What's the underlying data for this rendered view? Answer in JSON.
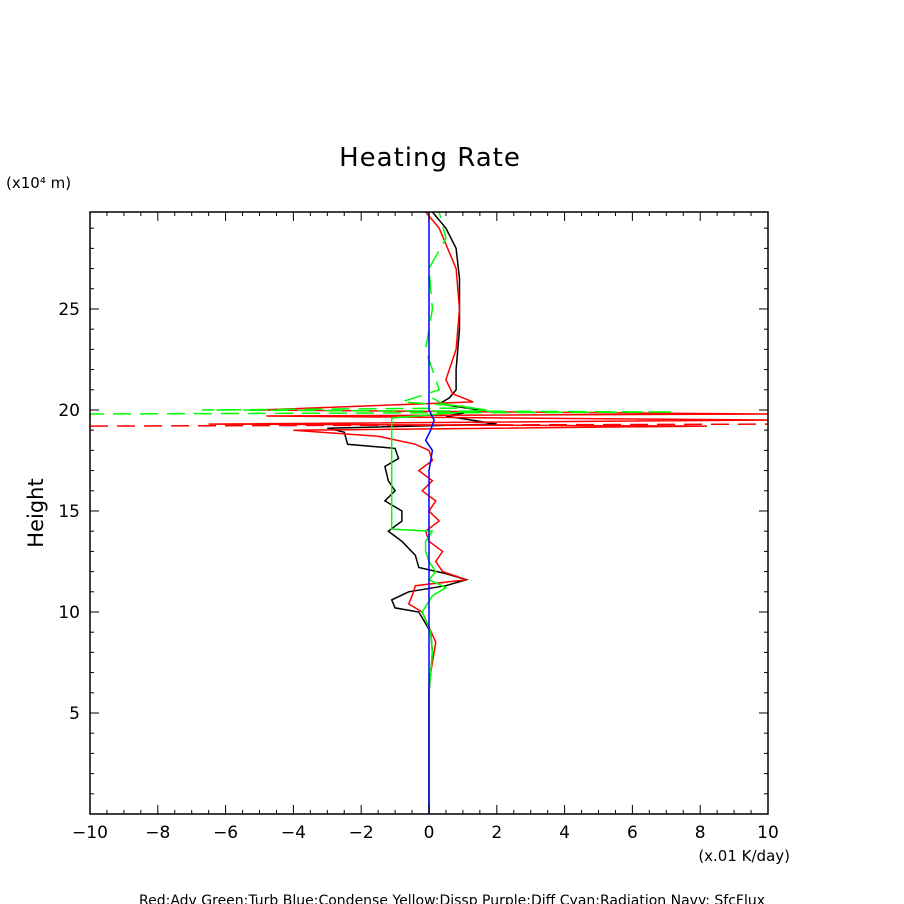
{
  "chart_data": {
    "type": "line",
    "title": "Heating Rate",
    "xlabel": "",
    "ylabel": "Height",
    "x_unit": "(x.01 K/day)",
    "y_unit": "(x10⁴ m)",
    "xlim": [
      -10,
      10
    ],
    "ylim": [
      0,
      29.8
    ],
    "x_ticks": [
      -10,
      -8,
      -6,
      -4,
      -2,
      0,
      2,
      4,
      6,
      8,
      10
    ],
    "y_ticks": [
      5,
      10,
      15,
      20,
      25
    ],
    "legend_text": "Red:Adv  Green:Turb  Blue:Condense  Yellow:Dissp  Purple:Diff  Cyan:Radiation  Navy: SfcFlux",
    "series": [
      {
        "name": "Black",
        "color": "#000000",
        "dash": "",
        "points": [
          [
            0,
            0
          ],
          [
            0,
            6
          ],
          [
            0.05,
            7
          ],
          [
            0.1,
            8
          ],
          [
            0.05,
            9
          ],
          [
            -0.3,
            10
          ],
          [
            -1,
            10.2
          ],
          [
            -1.1,
            10.6
          ],
          [
            -0.6,
            11
          ],
          [
            0.5,
            11.3
          ],
          [
            1.1,
            11.6
          ],
          [
            0.5,
            11.9
          ],
          [
            -0.3,
            12.2
          ],
          [
            -0.4,
            12.8
          ],
          [
            -0.8,
            13.5
          ],
          [
            -1.2,
            14
          ],
          [
            -0.8,
            14.5
          ],
          [
            -0.8,
            15
          ],
          [
            -1.3,
            15.5
          ],
          [
            -1,
            16
          ],
          [
            -1.2,
            16.5
          ],
          [
            -1.3,
            17.2
          ],
          [
            -0.9,
            17.6
          ],
          [
            -1,
            18.1
          ],
          [
            -2.4,
            18.3
          ],
          [
            -2.5,
            18.9
          ],
          [
            -3,
            19.1
          ],
          [
            2,
            19.3
          ],
          [
            0.5,
            19.7
          ],
          [
            1.5,
            20
          ],
          [
            0.3,
            20.3
          ],
          [
            0.6,
            20.6
          ],
          [
            0.8,
            21
          ],
          [
            0.8,
            22
          ],
          [
            0.9,
            24
          ],
          [
            0.9,
            26.5
          ],
          [
            0.8,
            28
          ],
          [
            0.5,
            29
          ],
          [
            0.1,
            29.8
          ]
        ]
      },
      {
        "name": "Red",
        "color": "#ff0000",
        "dash": "",
        "points": [
          [
            0,
            0
          ],
          [
            0,
            6.5
          ],
          [
            0.1,
            7.5
          ],
          [
            0.2,
            8.5
          ],
          [
            -0.2,
            10
          ],
          [
            -0.6,
            10.4
          ],
          [
            -0.5,
            10.8
          ],
          [
            -0.4,
            11.3
          ],
          [
            1.1,
            11.6
          ],
          [
            0.4,
            12
          ],
          [
            0.2,
            12.5
          ],
          [
            0.4,
            13
          ],
          [
            0,
            13.5
          ],
          [
            -0.1,
            14
          ],
          [
            0.3,
            14.5
          ],
          [
            0,
            15
          ],
          [
            0.2,
            15.5
          ],
          [
            -0.2,
            16
          ],
          [
            0.1,
            16.5
          ],
          [
            -0.3,
            17
          ],
          [
            0.1,
            17.5
          ],
          [
            0,
            18
          ],
          [
            -0.4,
            18.3
          ],
          [
            -1.5,
            18.7
          ],
          [
            -4,
            19
          ],
          [
            8.2,
            19.2
          ],
          [
            -6.5,
            19.3
          ],
          [
            10,
            19.5
          ],
          [
            -4.8,
            19.7
          ],
          [
            10,
            19.8
          ],
          [
            -5,
            20
          ],
          [
            1.3,
            20.4
          ],
          [
            0.7,
            20.8
          ],
          [
            0.5,
            21.5
          ],
          [
            0.8,
            23
          ],
          [
            0.9,
            25
          ],
          [
            0.8,
            27
          ],
          [
            0.3,
            29
          ],
          [
            -0.1,
            29.8
          ]
        ]
      },
      {
        "name": "Red dashed",
        "color": "#ff0000",
        "dash": "18 9",
        "points": [
          [
            -10,
            19.2
          ],
          [
            10,
            19.3
          ]
        ]
      },
      {
        "name": "Green solid",
        "color": "#00ff00",
        "dash": "",
        "points": [
          [
            0,
            0
          ],
          [
            0,
            6
          ],
          [
            0.1,
            8
          ],
          [
            0.05,
            9
          ],
          [
            -0.2,
            10
          ],
          [
            0.1,
            10.8
          ],
          [
            0.5,
            11.2
          ],
          [
            0,
            11.6
          ],
          [
            0.2,
            12
          ],
          [
            0,
            12.5
          ],
          [
            -0.1,
            13
          ],
          [
            -0.1,
            13.5
          ],
          [
            0.1,
            14
          ],
          [
            -1.1,
            14.1
          ],
          [
            -1.1,
            16
          ],
          [
            -1.1,
            18
          ],
          [
            -1.1,
            19.6
          ],
          [
            1.7,
            20
          ],
          [
            0.4,
            20.3
          ],
          [
            0.1,
            20.6
          ]
        ]
      },
      {
        "name": "Green dashed",
        "color": "#00ff00",
        "dash": "18 9",
        "points": [
          [
            -10,
            19.6
          ],
          [
            -10,
            19.8
          ],
          [
            7.2,
            19.9
          ],
          [
            -6.7,
            20
          ],
          [
            1.3,
            20.1
          ],
          [
            0.9,
            20.2
          ],
          [
            -0.8,
            20.4
          ],
          [
            0.3,
            21
          ],
          [
            0.1,
            22
          ],
          [
            -0.1,
            23
          ],
          [
            0.1,
            25
          ],
          [
            0,
            27
          ],
          [
            0.5,
            28.5
          ],
          [
            0.3,
            29.8
          ]
        ]
      },
      {
        "name": "Blue",
        "color": "#0000ff",
        "dash": "",
        "points": [
          [
            0,
            0
          ],
          [
            0,
            17
          ],
          [
            0.1,
            18
          ],
          [
            -0.1,
            18.5
          ],
          [
            0.05,
            19
          ],
          [
            0.15,
            19.5
          ],
          [
            0,
            20
          ],
          [
            0,
            29.8
          ]
        ]
      }
    ]
  }
}
